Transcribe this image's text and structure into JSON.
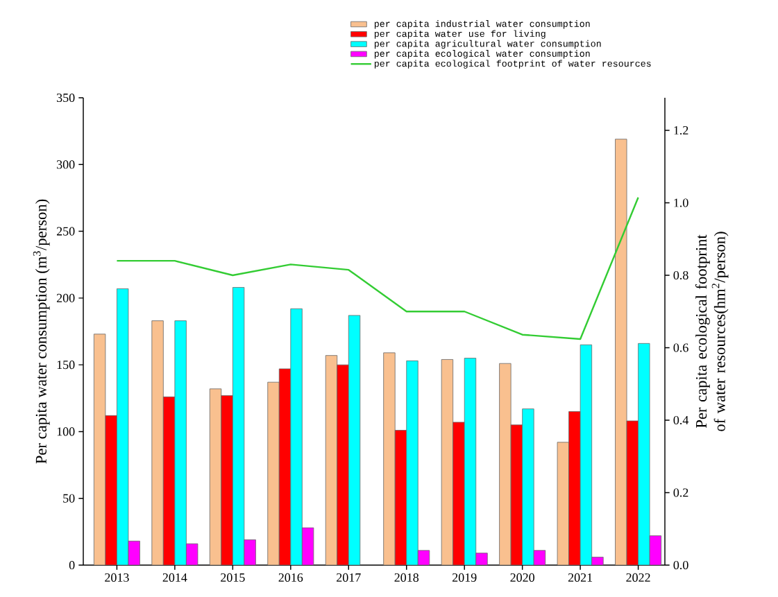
{
  "chart_data": {
    "type": "bar",
    "categories": [
      "2013",
      "2014",
      "2015",
      "2016",
      "2017",
      "2018",
      "2019",
      "2020",
      "2021",
      "2022"
    ],
    "ylabel": "Per capita water consumption (m$^{3}$/person)",
    "y2label": "Per capita ecological footprint of water resources(hm$^{2}$/person)",
    "ylim": [
      0,
      350
    ],
    "yticks": [
      0,
      50,
      100,
      150,
      200,
      250,
      300,
      350
    ],
    "y2lim": [
      0,
      1.29
    ],
    "y2ticks": [
      {
        "value": 0,
        "label": "0.0"
      },
      {
        "value": 0.2,
        "label": "0.2"
      },
      {
        "value": 0.4,
        "label": "0.4"
      },
      {
        "value": 0.6,
        "label": "0.6"
      },
      {
        "value": 0.8,
        "label": "0.8"
      },
      {
        "value": 1.0,
        "label": "1.0"
      },
      {
        "value": 1.2,
        "label": "1.2"
      }
    ],
    "legend": "top right",
    "series": [
      {
        "name": "per capita industrial water consumption",
        "color": "#f9c08f",
        "values": [
          173,
          183,
          132,
          137,
          157,
          159,
          154,
          151,
          92,
          319
        ]
      },
      {
        "name": "per capita water use for living",
        "color": "#ff0000",
        "values": [
          112,
          126,
          127,
          147,
          150,
          101,
          107,
          105,
          115,
          108
        ]
      },
      {
        "name": "per capita agricultural water consumption",
        "color": "#00ffff",
        "values": [
          207,
          183,
          208,
          192,
          187,
          153,
          155,
          117,
          165,
          166
        ]
      },
      {
        "name": "per capita ecological water consumption",
        "color": "#ff00ff",
        "values": [
          18,
          16,
          19,
          28,
          null,
          11,
          9,
          11,
          6,
          22
        ]
      },
      {
        "name": "per capita ecological footprint of water resources",
        "color": "#33cc33",
        "type": "line",
        "axis": "y2",
        "values": [
          0.84,
          0.84,
          0.8,
          0.83,
          0.815,
          0.7,
          0.7,
          0.636,
          0.624,
          1.015
        ]
      }
    ]
  }
}
